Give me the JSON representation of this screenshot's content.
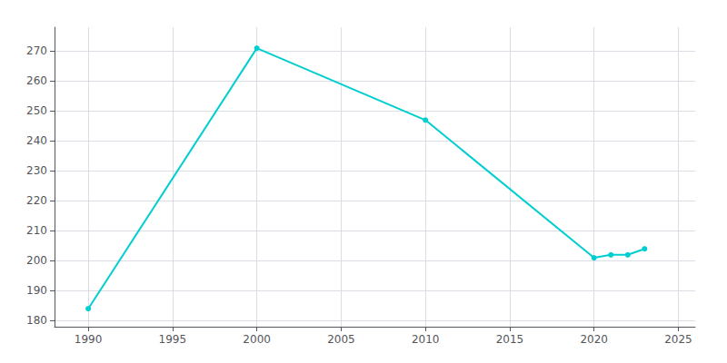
{
  "chart_data": {
    "type": "line",
    "x": [
      1990,
      2000,
      2010,
      2020,
      2021,
      2022,
      2023
    ],
    "values": [
      184,
      271,
      247,
      201,
      202,
      202,
      204
    ],
    "color": "#00CED1",
    "marker": "circle",
    "xlim": [
      1988,
      2026
    ],
    "xticks": [
      1990,
      1995,
      2000,
      2005,
      2010,
      2015,
      2020,
      2025
    ],
    "ylim": [
      178,
      278
    ],
    "yticks": [
      180,
      190,
      200,
      210,
      220,
      230,
      240,
      250,
      260,
      270
    ],
    "grid": true
  }
}
